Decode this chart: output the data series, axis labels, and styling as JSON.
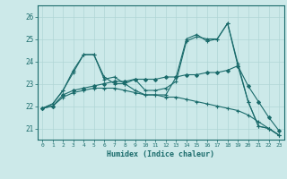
{
  "xlabel": "Humidex (Indice chaleur)",
  "background_color": "#cce9e9",
  "grid_color": "#b0d5d5",
  "line_color": "#1a6b6b",
  "xlim": [
    -0.5,
    23.5
  ],
  "ylim": [
    20.5,
    26.5
  ],
  "yticks": [
    21,
    22,
    23,
    24,
    25,
    26
  ],
  "xticks": [
    0,
    1,
    2,
    3,
    4,
    5,
    6,
    7,
    8,
    9,
    10,
    11,
    12,
    13,
    14,
    15,
    16,
    17,
    18,
    19,
    20,
    21,
    22,
    23
  ],
  "series": [
    {
      "x": [
        0,
        1,
        2,
        3,
        4,
        5,
        6,
        7,
        8,
        9,
        10,
        11,
        12,
        13,
        14,
        15,
        16,
        17,
        18,
        19,
        20,
        21,
        22,
        23
      ],
      "y": [
        21.9,
        22.1,
        22.7,
        23.5,
        24.3,
        24.3,
        23.2,
        23.3,
        23.0,
        22.7,
        22.5,
        22.5,
        22.5,
        23.3,
        25.0,
        25.2,
        24.9,
        25.0,
        25.7,
        23.8,
        22.2,
        21.1,
        21.0,
        20.7
      ]
    },
    {
      "x": [
        0,
        1,
        2,
        3,
        4,
        5,
        6,
        7,
        8,
        9,
        10,
        11,
        12,
        13,
        14,
        15,
        16,
        17,
        18,
        19,
        20,
        21,
        22,
        23
      ],
      "y": [
        21.9,
        22.1,
        22.7,
        23.6,
        24.3,
        24.3,
        23.3,
        23.0,
        23.0,
        23.2,
        22.7,
        22.7,
        22.8,
        23.1,
        24.9,
        25.1,
        25.0,
        25.0,
        25.7,
        23.9,
        22.2,
        21.1,
        21.0,
        20.7
      ]
    },
    {
      "x": [
        0,
        1,
        2,
        3,
        4,
        5,
        6,
        7,
        8,
        9,
        10,
        11,
        12,
        13,
        14,
        15,
        16,
        17,
        18,
        19,
        20,
        21,
        22,
        23
      ],
      "y": [
        21.9,
        22.0,
        22.5,
        22.7,
        22.8,
        22.9,
        23.0,
        23.1,
        23.1,
        23.2,
        23.2,
        23.2,
        23.3,
        23.3,
        23.4,
        23.4,
        23.5,
        23.5,
        23.6,
        23.8,
        22.9,
        22.2,
        21.5,
        20.9
      ]
    },
    {
      "x": [
        0,
        1,
        2,
        3,
        4,
        5,
        6,
        7,
        8,
        9,
        10,
        11,
        12,
        13,
        14,
        15,
        16,
        17,
        18,
        19,
        20,
        21,
        22,
        23
      ],
      "y": [
        21.9,
        22.0,
        22.4,
        22.6,
        22.7,
        22.8,
        22.8,
        22.8,
        22.7,
        22.6,
        22.5,
        22.5,
        22.4,
        22.4,
        22.3,
        22.2,
        22.1,
        22.0,
        21.9,
        21.8,
        21.6,
        21.3,
        21.0,
        20.7
      ]
    }
  ]
}
